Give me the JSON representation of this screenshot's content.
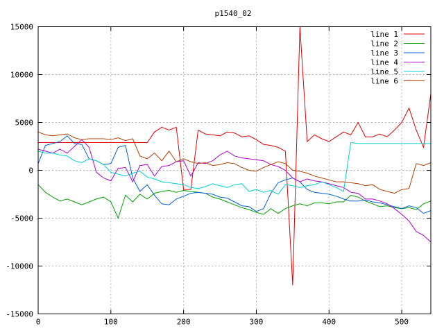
{
  "chart_data": {
    "type": "line",
    "title": "p1540_02",
    "xlabel": "",
    "ylabel": "",
    "xlim": [
      0,
      540
    ],
    "ylim": [
      -15000,
      15000
    ],
    "grid": true,
    "legend_position": "top-right",
    "x_ticks": [
      0,
      100,
      200,
      300,
      400,
      500
    ],
    "y_ticks": [
      -15000,
      -10000,
      -5000,
      0,
      5000,
      10000,
      15000
    ],
    "x": [
      0,
      10,
      20,
      30,
      40,
      50,
      60,
      70,
      80,
      90,
      100,
      110,
      120,
      130,
      140,
      150,
      160,
      170,
      180,
      190,
      200,
      210,
      220,
      230,
      240,
      250,
      260,
      270,
      280,
      290,
      300,
      310,
      320,
      330,
      340,
      350,
      360,
      370,
      380,
      390,
      400,
      410,
      420,
      430,
      440,
      450,
      460,
      470,
      480,
      490,
      500,
      510,
      520,
      530,
      540
    ],
    "series": [
      {
        "name": "line 1",
        "color": "#e00000",
        "values": [
          2900,
          2900,
          2900,
          2900,
          2900,
          2900,
          2900,
          2900,
          2900,
          2900,
          2900,
          2900,
          2900,
          2900,
          2900,
          2900,
          4000,
          4500,
          4200,
          4500,
          -2000,
          -2000,
          4200,
          3800,
          3700,
          3600,
          4000,
          3900,
          3500,
          3600,
          3200,
          2700,
          2600,
          2400,
          2000,
          -12000,
          15000,
          3000,
          3700,
          3300,
          3000,
          3500,
          4000,
          3700,
          5000,
          3500,
          3500,
          3800,
          3500,
          4200,
          5000,
          6500,
          4200,
          2400,
          8000
        ]
      },
      {
        "name": "line 2",
        "color": "#00a000",
        "values": [
          -1500,
          -2300,
          -2800,
          -3200,
          -3000,
          -3300,
          -3600,
          -3300,
          -3000,
          -2800,
          -3300,
          -5000,
          -2600,
          -3300,
          -2500,
          -3000,
          -2400,
          -2200,
          -2100,
          -2300,
          -2100,
          -2200,
          -2300,
          -2400,
          -2800,
          -3000,
          -3300,
          -3600,
          -3900,
          -4100,
          -4400,
          -4600,
          -4000,
          -4500,
          -4000,
          -3700,
          -3500,
          -3700,
          -3400,
          -3400,
          -3500,
          -3300,
          -3300,
          -2600,
          -2800,
          -3200,
          -3500,
          -3800,
          -3700,
          -3900,
          -4000,
          -3900,
          -4100,
          -3500,
          -3200
        ]
      },
      {
        "name": "line 3",
        "color": "#0060d0",
        "values": [
          700,
          2600,
          2800,
          3000,
          3600,
          2800,
          2700,
          1200,
          1000,
          600,
          700,
          2400,
          2600,
          -800,
          -2200,
          -1500,
          -2600,
          -3500,
          -3600,
          -3000,
          -2700,
          -2400,
          -2300,
          -2400,
          -2500,
          -2800,
          -2900,
          -3300,
          -3700,
          -3800,
          -4300,
          -4000,
          -2400,
          -1300,
          -1000,
          -800,
          -1200,
          -2000,
          -2300,
          -2400,
          -2500,
          -2700,
          -3000,
          -3200,
          -3200,
          -3100,
          -3300,
          -3400,
          -3600,
          -3800,
          -4000,
          -3700,
          -3900,
          -4500,
          -4200
        ]
      },
      {
        "name": "line 4",
        "color": "#b000d0",
        "values": [
          2200,
          2000,
          1800,
          2200,
          1800,
          2500,
          3200,
          2400,
          -200,
          -800,
          -1100,
          200,
          300,
          -1200,
          500,
          600,
          -600,
          400,
          500,
          900,
          1000,
          -600,
          800,
          700,
          1000,
          1600,
          2000,
          1500,
          1300,
          1200,
          1100,
          1000,
          600,
          400,
          0,
          -800,
          -1200,
          -900,
          -1100,
          -1200,
          -1400,
          -1600,
          -1800,
          -2300,
          -2400,
          -3000,
          -3000,
          -3200,
          -3500,
          -4000,
          -4600,
          -5300,
          -6400,
          -6800,
          -7500
        ]
      },
      {
        "name": "line 5",
        "color": "#00d0d0",
        "values": [
          2000,
          1800,
          1800,
          1600,
          1500,
          1000,
          800,
          1200,
          1000,
          600,
          -200,
          -400,
          -600,
          -300,
          -100,
          -700,
          -900,
          -1200,
          -1300,
          -1400,
          -1500,
          -1800,
          -1900,
          -1700,
          -1400,
          -1600,
          -1800,
          -1500,
          -1400,
          -2200,
          -2000,
          -2300,
          -2100,
          -2500,
          -1500,
          -1600,
          -1800,
          -1600,
          -1500,
          -1200,
          -1500,
          -1800,
          -2200,
          2900,
          2800,
          2800,
          2800,
          2800,
          2800,
          2800,
          2800,
          2800,
          2800,
          2800,
          2800
        ]
      },
      {
        "name": "line 6",
        "color": "#b04000",
        "values": [
          4000,
          3700,
          3600,
          3700,
          3800,
          3400,
          3200,
          3300,
          3300,
          3300,
          3200,
          3400,
          3100,
          3300,
          1500,
          1200,
          1800,
          1000,
          2000,
          900,
          1200,
          900,
          700,
          800,
          500,
          600,
          800,
          700,
          300,
          0,
          -100,
          300,
          600,
          900,
          700,
          0,
          -100,
          -300,
          -600,
          -800,
          -1000,
          -1200,
          -1200,
          -1300,
          -1400,
          -1600,
          -1500,
          -2000,
          -2200,
          -2400,
          -2000,
          -1900,
          700,
          500,
          800
        ]
      }
    ]
  }
}
